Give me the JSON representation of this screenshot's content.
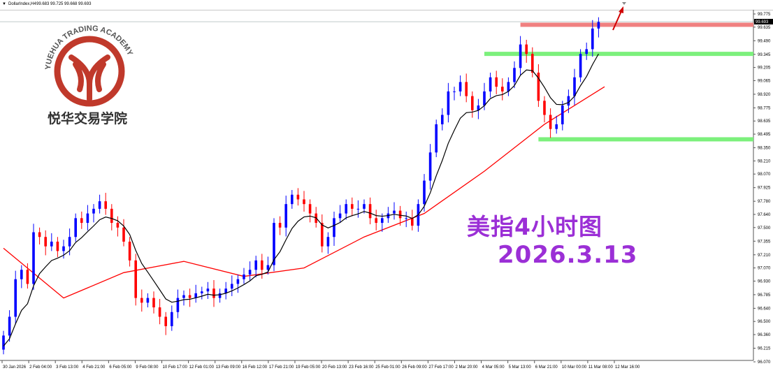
{
  "header": {
    "symbol": "DollarIndex,H4",
    "ohlc_text": "99.683 99.725 99.668 99.693"
  },
  "watermark": {
    "en": "YUEHUA TRADING ACADEMY",
    "cn": "悦华交易学院",
    "color": "#c0392b"
  },
  "annotation": {
    "line1": "美指4小时图",
    "line2": "2026.3.13",
    "color": "#9b2fd6"
  },
  "chart_data": {
    "type": "candlestick",
    "symbol": "DollarIndex",
    "timeframe": "H4",
    "current_price": "99.693",
    "ylim": [
      96.07,
      99.775
    ],
    "y_ticks": [
      "99.775",
      "99.635",
      "99.490",
      "99.345",
      "99.205",
      "99.065",
      "98.920",
      "98.775",
      "98.635",
      "98.495",
      "98.350",
      "98.210",
      "98.070",
      "97.925",
      "97.780",
      "97.640",
      "97.500",
      "97.355",
      "97.210",
      "97.070",
      "96.930",
      "96.785",
      "96.640",
      "96.500",
      "96.360",
      "96.215",
      "96.070"
    ],
    "x_ticks": [
      "30 Jan 2026",
      "2 Feb 04:00",
      "3 Feb 13:00",
      "4 Feb 21:00",
      "6 Feb 05:00",
      "9 Feb 08:00",
      "10 Feb 17:00",
      "12 Feb 01:00",
      "13 Feb 09:00",
      "16 Feb 12:00",
      "17 Feb 21:00",
      "19 Feb 05:00",
      "20 Feb 13:00",
      "23 Feb 16:00",
      "25 Feb 01:00",
      "26 Feb 09:00",
      "27 Feb 17:00",
      "2 Mar 20:00",
      "4 Mar 05:00",
      "5 Mar 13:00",
      "6 Mar 21:00",
      "10 Mar 00:00",
      "11 Mar 08:00",
      "12 Mar 16:00"
    ],
    "closes": [
      96.35,
      96.55,
      96.95,
      97.05,
      96.9,
      97.45,
      97.4,
      97.3,
      97.35,
      97.25,
      97.3,
      97.4,
      97.6,
      97.55,
      97.65,
      97.7,
      97.78,
      97.7,
      97.55,
      97.5,
      97.35,
      97.15,
      96.75,
      96.7,
      96.75,
      96.65,
      96.55,
      96.45,
      96.6,
      96.75,
      96.78,
      96.75,
      96.8,
      96.82,
      96.85,
      96.75,
      96.8,
      96.85,
      96.9,
      96.95,
      97.0,
      97.05,
      97.15,
      97.05,
      97.1,
      97.55,
      97.5,
      97.75,
      97.85,
      97.8,
      97.75,
      97.65,
      97.55,
      97.3,
      97.4,
      97.6,
      97.65,
      97.75,
      97.7,
      97.7,
      97.75,
      97.6,
      97.55,
      97.6,
      97.65,
      97.68,
      97.6,
      97.6,
      97.52,
      97.75,
      98.0,
      98.3,
      98.6,
      98.7,
      98.95,
      98.95,
      99.05,
      98.9,
      98.75,
      98.8,
      98.95,
      99.1,
      99.0,
      98.95,
      99.05,
      99.2,
      99.45,
      99.35,
      99.15,
      98.85,
      98.7,
      98.55,
      98.6,
      98.8,
      98.9,
      99.1,
      99.35,
      99.4,
      99.62,
      99.69
    ],
    "first_open": 96.2,
    "slow_ma_every_10": [
      97.28,
      96.75,
      97.02,
      97.14,
      96.98,
      97.07,
      97.4,
      97.65,
      98.1,
      98.6,
      99.0
    ],
    "levels": [
      {
        "price": 99.66,
        "color": "#f08080",
        "from_index": 86
      },
      {
        "price": 99.35,
        "color": "#7cf07c",
        "from_index": 80
      },
      {
        "price": 98.44,
        "color": "#7cf07c",
        "from_index": 89
      }
    ],
    "colors": {
      "bull": "#0000ff",
      "bear": "#ff0000",
      "fast_ma": "#000000",
      "slow_ma": "#ff0000",
      "arrow": "#d00000"
    },
    "grid": false
  }
}
